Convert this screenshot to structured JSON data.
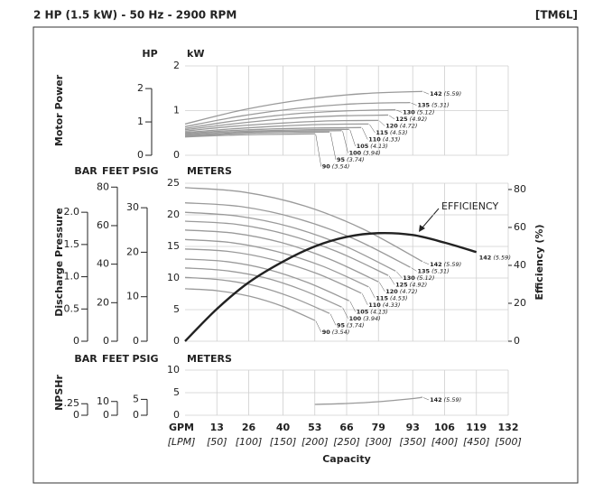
{
  "header": {
    "title": "2 HP (1.5 kW) - 50 Hz - 2900 RPM",
    "code": "[TM6L]"
  },
  "x_axis": {
    "xlim": [
      0,
      132
    ],
    "xticks": [
      13,
      26,
      40,
      53,
      66,
      79,
      93,
      106,
      119,
      132
    ],
    "unit": "GPM",
    "unit2": "[LPM]",
    "labels2": [
      "[50]",
      "[100]",
      "[150]",
      "[200]",
      "[250]",
      "[300]",
      "[350]",
      "[400]",
      "[450]",
      "[500]"
    ],
    "xlabel": "Capacity"
  },
  "chart_data": [
    {
      "type": "line",
      "ylabel": "Motor Power",
      "yunit": "kW",
      "ylim": [
        0,
        2
      ],
      "yticks": [
        0,
        1,
        2
      ],
      "grid": true,
      "color": "#9a9a9a",
      "alt_axes": [
        {
          "name": "HP",
          "ylim": [
            0,
            2.68
          ],
          "yticks": [
            0,
            1,
            2
          ]
        }
      ],
      "series": [
        {
          "name": "142",
          "label": "(5.59)",
          "x": [
            0,
            24,
            49,
            73,
            97
          ],
          "values": [
            0.7,
            1.02,
            1.25,
            1.38,
            1.43
          ]
        },
        {
          "name": "135",
          "label": "(5.31)",
          "x": [
            0,
            23,
            46,
            69,
            92
          ],
          "values": [
            0.64,
            0.88,
            1.05,
            1.15,
            1.18
          ]
        },
        {
          "name": "130",
          "label": "(5.12)",
          "x": [
            0,
            21.5,
            43,
            64.5,
            86
          ],
          "values": [
            0.6,
            0.78,
            0.92,
            0.99,
            1.02
          ]
        },
        {
          "name": "125",
          "label": "(4.92)",
          "x": [
            0,
            21,
            41.5,
            62,
            83
          ],
          "values": [
            0.57,
            0.71,
            0.82,
            0.88,
            0.9
          ]
        },
        {
          "name": "120",
          "label": "(4.72)",
          "x": [
            0,
            20,
            39.5,
            59,
            79
          ],
          "values": [
            0.54,
            0.65,
            0.72,
            0.77,
            0.78
          ]
        },
        {
          "name": "115",
          "label": "(4.53)",
          "x": [
            0,
            19,
            37.5,
            56,
            75
          ],
          "values": [
            0.51,
            0.59,
            0.65,
            0.69,
            0.7
          ]
        },
        {
          "name": "110",
          "label": "(4.33)",
          "x": [
            0,
            18,
            36,
            54,
            72
          ],
          "values": [
            0.49,
            0.55,
            0.59,
            0.61,
            0.62
          ]
        },
        {
          "name": "105",
          "label": "(4.13)",
          "x": [
            0,
            17,
            33.5,
            50,
            67
          ],
          "values": [
            0.47,
            0.52,
            0.55,
            0.57,
            0.58
          ]
        },
        {
          "name": "100",
          "label": "(3.94)",
          "x": [
            0,
            16,
            32,
            48,
            64
          ],
          "values": [
            0.45,
            0.49,
            0.53,
            0.54,
            0.55
          ]
        },
        {
          "name": "95",
          "label": "(3.74)",
          "x": [
            0,
            15,
            29.5,
            44,
            59
          ],
          "values": [
            0.43,
            0.47,
            0.5,
            0.51,
            0.52
          ]
        },
        {
          "name": "90",
          "label": "(3.54)",
          "x": [
            0,
            13,
            26.5,
            40,
            53
          ],
          "values": [
            0.41,
            0.44,
            0.46,
            0.47,
            0.48
          ]
        }
      ]
    },
    {
      "type": "line",
      "ylabel": "Discharge Pressure",
      "yunit": "METERS",
      "ylim": [
        0,
        25
      ],
      "yticks": [
        0,
        5,
        10,
        15,
        20,
        25
      ],
      "grid": true,
      "color": "#9a9a9a",
      "alt_axes": [
        {
          "name": "BAR",
          "ylim": [
            0,
            2.45
          ],
          "yticks": [
            0,
            0.5,
            {
              "value": 1.0,
              "label": "1.0"
            },
            1.5,
            {
              "value": 2.0,
              "label": "2.0"
            }
          ]
        },
        {
          "name": "FEET",
          "ylim": [
            0,
            82
          ],
          "yticks": [
            0,
            20,
            40,
            60,
            80
          ]
        },
        {
          "name": "PSIG",
          "ylim": [
            0,
            35.5
          ],
          "yticks": [
            0,
            10,
            20,
            30
          ]
        }
      ],
      "y2label": "Efficiency (%)",
      "y2lim": [
        0,
        83.3
      ],
      "y2ticks": [
        0,
        20,
        40,
        60,
        80
      ],
      "annotation": "EFFICIENCY",
      "series": [
        {
          "name": "142",
          "label": "(5.59)",
          "x": [
            0,
            24,
            49,
            73,
            97
          ],
          "values": [
            24.3,
            23.6,
            21.4,
            17.7,
            12.6
          ]
        },
        {
          "name": "135",
          "label": "(5.31)",
          "x": [
            0,
            23,
            46,
            69,
            92
          ],
          "values": [
            21.9,
            21.3,
            19.4,
            16.2,
            11.7
          ]
        },
        {
          "name": "130",
          "label": "(5.12)",
          "x": [
            0,
            21.5,
            43,
            64.5,
            86
          ],
          "values": [
            20.4,
            19.8,
            18.1,
            15.2,
            11.1
          ]
        },
        {
          "name": "125",
          "label": "(4.92)",
          "x": [
            0,
            21,
            41.5,
            62,
            83
          ],
          "values": [
            19.0,
            18.5,
            16.9,
            14.2,
            10.4
          ]
        },
        {
          "name": "120",
          "label": "(4.72)",
          "x": [
            0,
            20,
            39.5,
            59,
            79
          ],
          "values": [
            17.6,
            17.1,
            15.6,
            13.0,
            9.4
          ]
        },
        {
          "name": "115",
          "label": "(4.53)",
          "x": [
            0,
            19,
            37.5,
            56,
            75
          ],
          "values": [
            16.1,
            15.6,
            14.2,
            11.9,
            8.6
          ]
        },
        {
          "name": "110",
          "label": "(4.33)",
          "x": [
            0,
            18,
            36,
            54,
            72
          ],
          "values": [
            14.6,
            14.2,
            12.9,
            10.7,
            7.6
          ]
        },
        {
          "name": "105",
          "label": "(4.13)",
          "x": [
            0,
            17,
            33.5,
            50,
            67
          ],
          "values": [
            13.0,
            12.6,
            11.4,
            9.3,
            6.4
          ]
        },
        {
          "name": "100",
          "label": "(3.94)",
          "x": [
            0,
            16,
            32,
            48,
            64
          ],
          "values": [
            11.6,
            11.2,
            10.1,
            8.1,
            5.4
          ]
        },
        {
          "name": "95",
          "label": "(3.74)",
          "x": [
            0,
            15,
            29.5,
            44,
            59
          ],
          "values": [
            10.1,
            9.7,
            8.7,
            6.9,
            4.4
          ]
        },
        {
          "name": "90",
          "label": "(3.54)",
          "x": [
            0,
            13,
            26.5,
            40,
            53
          ],
          "values": [
            8.3,
            8.0,
            7.1,
            5.5,
            3.3
          ]
        },
        {
          "name": "142",
          "label": "(5.59)",
          "axis": "y2",
          "color": "#222222",
          "x": [
            0,
            13,
            26,
            40,
            53,
            66,
            79,
            93,
            106,
            119
          ],
          "values": [
            0,
            17,
            31,
            42,
            50,
            55,
            57,
            56,
            52,
            47
          ]
        }
      ]
    },
    {
      "type": "line",
      "ylabel": "NPSHr",
      "yunit": "METERS",
      "ylim": [
        0,
        10
      ],
      "yticks": [
        0,
        5,
        10
      ],
      "grid": true,
      "color": "#9a9a9a",
      "alt_axes": [
        {
          "name": "BAR",
          "ylim": [
            0,
            0.98
          ],
          "yticks": [
            0,
            {
              "value": 0.25,
              "label": ".25"
            }
          ]
        },
        {
          "name": "FEET",
          "ylim": [
            0,
            32.8
          ],
          "yticks": [
            0,
            10
          ]
        },
        {
          "name": "PSIG",
          "ylim": [
            0,
            14.2
          ],
          "yticks": [
            0,
            5
          ]
        }
      ],
      "series": [
        {
          "name": "142",
          "label": "(5.59)",
          "x": [
            53,
            66,
            79,
            93,
            97
          ],
          "values": [
            2.4,
            2.6,
            3.0,
            3.7,
            4.0
          ]
        }
      ]
    }
  ]
}
